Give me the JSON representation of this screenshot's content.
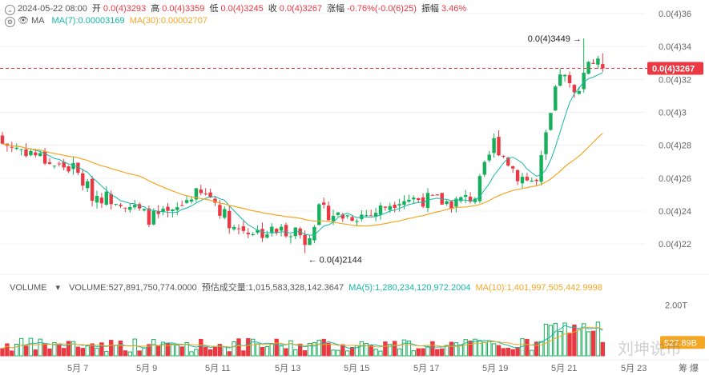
{
  "header": {
    "date": "2024-05-22 08:00",
    "open_label": "开",
    "open": "0.0(4)3293",
    "high_label": "高",
    "high": "0.0(4)3359",
    "low_label": "低",
    "low": "0.0(4)3245",
    "close_label": "收",
    "close": "0.0(4)3267",
    "change_label": "涨幅",
    "change": "-0.76%(-0.0(6)25)",
    "amp_label": "振幅",
    "amp": "3.46%",
    "ma_label": "MA",
    "ma7": "MA(7):0.00003169",
    "ma30": "MA(30):0.00002707"
  },
  "volume_header": {
    "label": "VOLUME",
    "volume": "VOLUME:527,891,750,774.0000",
    "est": "预估成交量:1,015,583,328,142.3647",
    "ma5": "MA(5):1,280,234,120,972.2004",
    "ma10": "MA(10):1,401,997,505,442.9998"
  },
  "watermark": "刘坤说币",
  "colors": {
    "up": "#16b05a",
    "down": "#ea3943",
    "ma7": "#14b8a6",
    "ma30": "#f5a623",
    "vma5": "#14b8a6",
    "vma10": "#f5a623"
  },
  "chart_data": {
    "type": "candlestick",
    "price_axis": {
      "ticks": [
        2.2e-05,
        2.4e-05,
        2.6e-05,
        2.8e-05,
        3e-05,
        3.2e-05,
        3.4e-05,
        3.6e-05
      ],
      "tick_labels": [
        "0.0(4)22",
        "0.0(4)24",
        "0.0(4)26",
        "0.0(4)28",
        "0.0(4)3",
        "0.0(4)32",
        "0.0(4)34",
        "0.0(4)36"
      ],
      "current_price": 3.267e-05,
      "current_label": "0.0(4)3267",
      "range": [
        2.128e-05,
        3.624e-05
      ]
    },
    "volume_axis": {
      "tick_value": 2000000000000,
      "tick_label": "2.00T",
      "current_value": 527891750774,
      "current_label": "527.89B",
      "range": [
        0,
        2400000000000
      ]
    },
    "x_labels": [
      "5月 7",
      "5月 9",
      "5月 11",
      "5月 13",
      "5月 15",
      "5月 17",
      "5月 19",
      "5月 21",
      "5月 23"
    ],
    "annotations": [
      {
        "label": "0.0(4)3449",
        "value": 3.449e-05
      },
      {
        "label": "0.0(4)2144",
        "value": 2.144e-05
      }
    ],
    "legend_extra": [
      "筹",
      "爆"
    ]
  }
}
